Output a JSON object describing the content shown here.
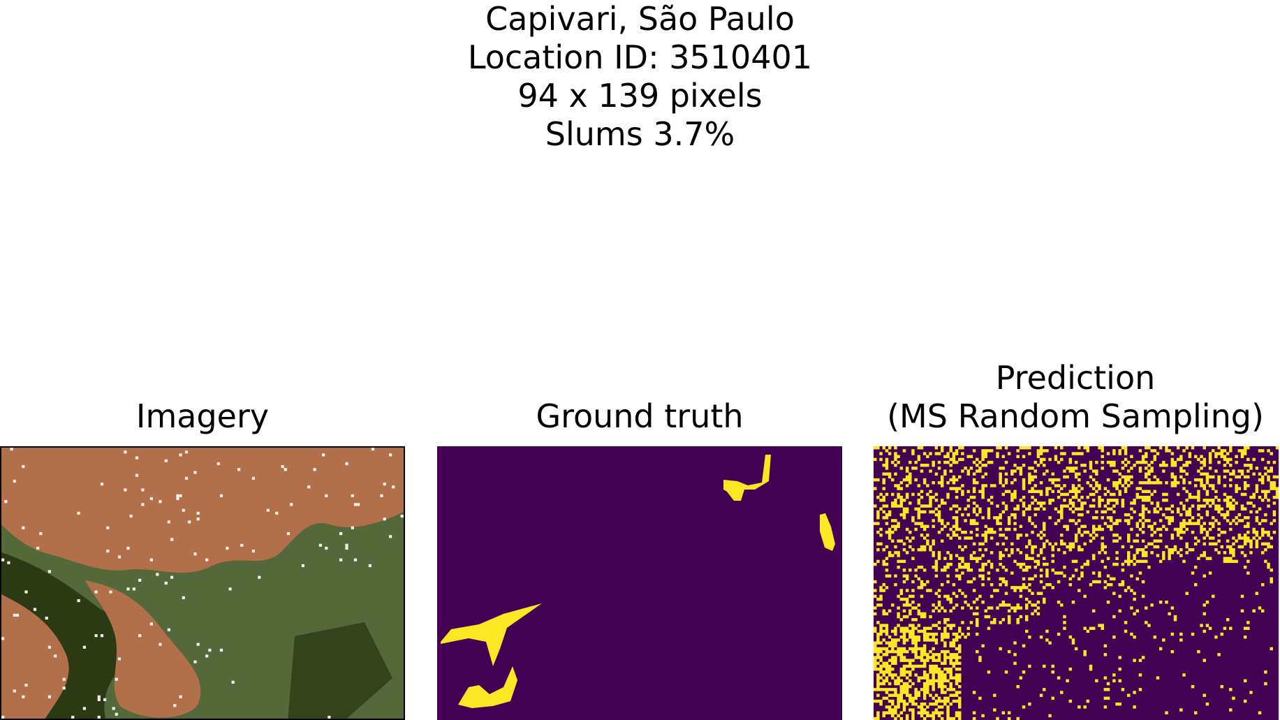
{
  "figure": {
    "suptitle": {
      "location": "Capivari, São Paulo",
      "location_id": "Location ID: 3510401",
      "size": "94 x 139 pixels",
      "slums": "Slums 3.7%"
    },
    "panels": [
      {
        "key": "imagery",
        "title_lines": [
          "Imagery"
        ]
      },
      {
        "key": "ground_truth",
        "title_lines": [
          "Ground truth"
        ]
      },
      {
        "key": "prediction",
        "title_lines": [
          "Prediction",
          "(MS Random Sampling)"
        ]
      }
    ]
  },
  "colors": {
    "background": "#440154",
    "slum": "#fde725",
    "imagery_urban": "#b2704a",
    "imagery_vegetation": "#2c3a14",
    "imagery_field": "#54683a",
    "imagery_bright": "#f2eee8"
  }
}
